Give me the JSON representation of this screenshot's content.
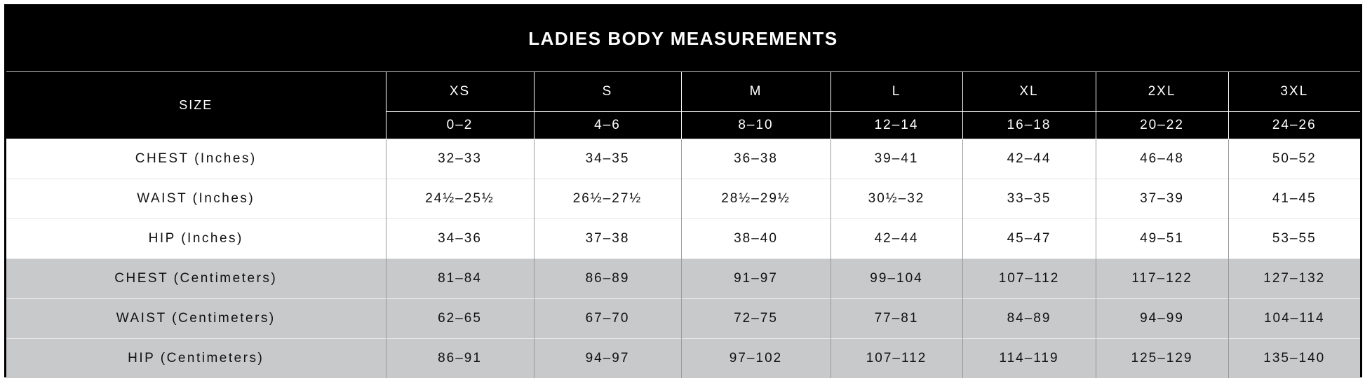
{
  "title": "LADIES BODY MEASUREMENTS",
  "table": {
    "size_label": "SIZE",
    "sizes": [
      "XS",
      "S",
      "M",
      "L",
      "XL",
      "2XL",
      "3XL"
    ],
    "ranges": [
      "0–2",
      "4–6",
      "8–10",
      "12–14",
      "16–18",
      "20–22",
      "24–26"
    ],
    "rows": [
      {
        "label": "CHEST (Inches)",
        "cells": [
          "32–33",
          "34–35",
          "36–38",
          "39–41",
          "42–44",
          "46–48",
          "50–52"
        ]
      },
      {
        "label": "WAIST (Inches)",
        "cells": [
          "24½–25½",
          "26½–27½",
          "28½–29½",
          "30½–32",
          "33–35",
          "37–39",
          "41–45"
        ]
      },
      {
        "label": "HIP (Inches)",
        "cells": [
          "34–36",
          "37–38",
          "38–40",
          "42–44",
          "45–47",
          "49–51",
          "53–55"
        ]
      },
      {
        "label": "CHEST (Centimeters)",
        "cells": [
          "81–84",
          "86–89",
          "91–97",
          "99–104",
          "107–112",
          "117–122",
          "127–132"
        ]
      },
      {
        "label": "WAIST (Centimeters)",
        "cells": [
          "62–65",
          "67–70",
          "72–75",
          "77–81",
          "84–89",
          "94–99",
          "104–114"
        ]
      },
      {
        "label": "HIP (Centimeters)",
        "cells": [
          "86–91",
          "94–97",
          "97–102",
          "107–112",
          "114–119",
          "125–129",
          "135–140"
        ]
      }
    ]
  }
}
